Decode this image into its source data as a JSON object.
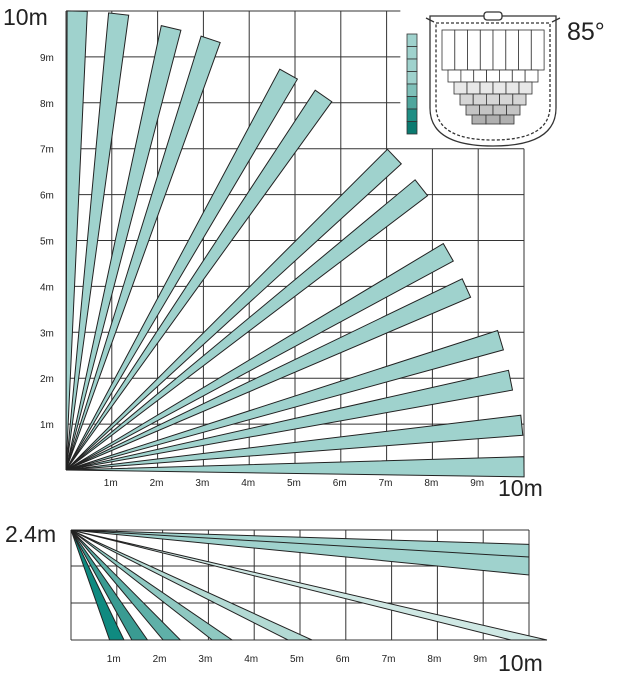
{
  "top_view": {
    "corner_label": "10m",
    "x_end_label": "10m",
    "y_ticks": [
      "1m",
      "2m",
      "3m",
      "4m",
      "5m",
      "6m",
      "7m",
      "8m",
      "9m"
    ],
    "x_ticks": [
      "1m",
      "2m",
      "3m",
      "4m",
      "5m",
      "6m",
      "7m",
      "8m",
      "9m"
    ],
    "beam_color": "#9fd2cd",
    "beam_pairs": [
      {
        "angle_deg": 3,
        "range_m": 10
      },
      {
        "angle_deg": 14,
        "range_m": 9.9
      },
      {
        "angle_deg": 27,
        "range_m": 9.6
      },
      {
        "angle_deg": 41,
        "range_m": 9.9
      },
      {
        "angle_deg": 58,
        "range_m": 9.9
      },
      {
        "angle_deg": 74,
        "range_m": 9.9
      },
      {
        "angle_deg": 86,
        "range_m": 10
      }
    ]
  },
  "side_view": {
    "height_label": "2.4m",
    "x_end_label": "10m",
    "x_ticks": [
      "1m",
      "2m",
      "3m",
      "4m",
      "5m",
      "6m",
      "7m",
      "8m",
      "9m"
    ],
    "beams": [
      {
        "range_m": 1.0,
        "color": "#0f8a80"
      },
      {
        "range_m": 1.5,
        "color": "#3a9b92"
      },
      {
        "range_m": 2.2,
        "color": "#5fb0a8"
      },
      {
        "range_m": 3.3,
        "color": "#8fc8c1"
      },
      {
        "range_m": 5.0,
        "color": "#b3dad4"
      },
      {
        "range_m": 10.0,
        "color": "#cfe8e4"
      }
    ],
    "upper_beams": [
      {
        "end_depth_m": 0.65
      },
      {
        "end_depth_m": 1.0
      }
    ]
  },
  "detector": {
    "angle_label": "85°",
    "legend_colors": [
      "#9fd2cd",
      "#9fd2cd",
      "#9fd2cd",
      "#9fd2cd",
      "#7fc0b9",
      "#4fa69d",
      "#1f8e84",
      "#0b7a70"
    ]
  }
}
